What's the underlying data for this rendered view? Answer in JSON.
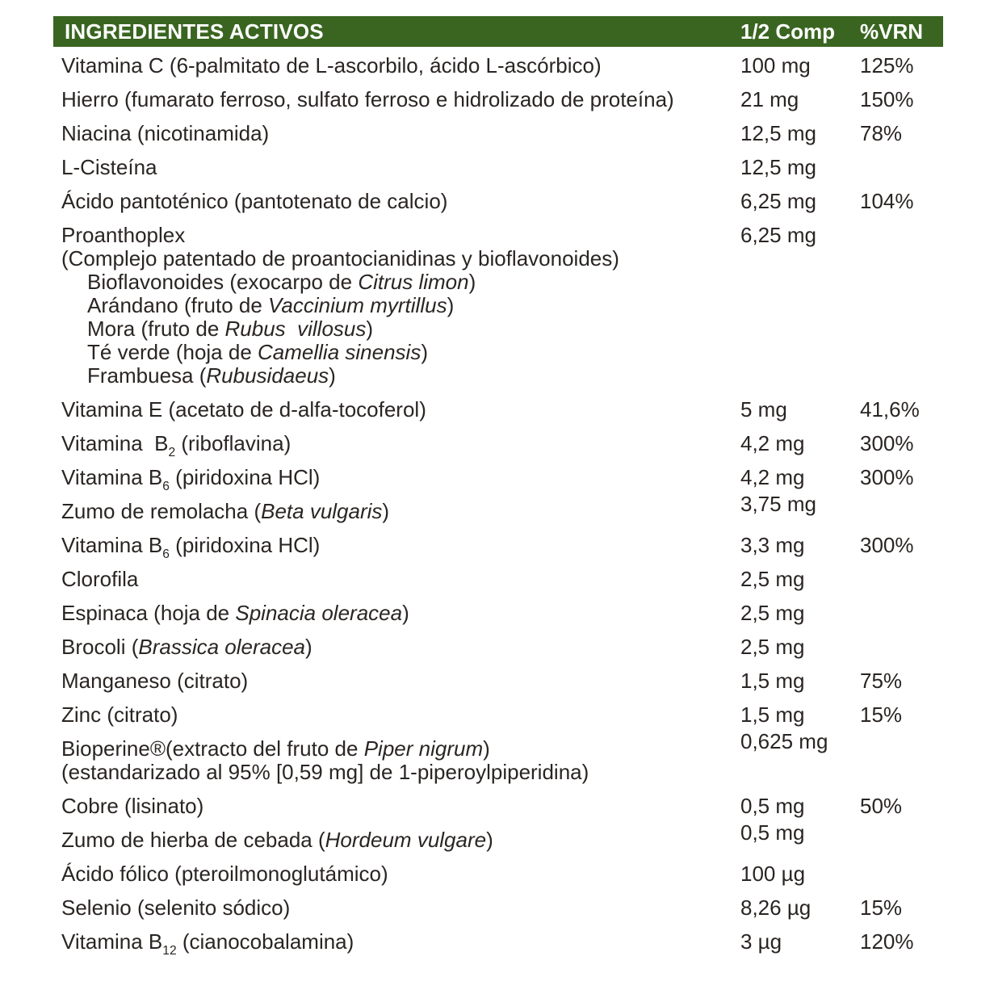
{
  "header": {
    "title": "INGREDIENTES ACTIVOS",
    "col_amount": "1/2 Comp",
    "col_vrn": "%VRN"
  },
  "colors": {
    "header_bg": "#3A6521",
    "header_text": "#FFFFFF",
    "body_text": "#2A2523",
    "page_bg": "#FFFFFF"
  },
  "rows": [
    {
      "lines": [
        {
          "indent": false,
          "segs": [
            [
              "n",
              "Vitamina C (6-palmitato de L-ascorbilo, ácido L-ascórbico)"
            ]
          ]
        }
      ],
      "amount": "100 mg",
      "vrn": "125%",
      "raised": false
    },
    {
      "lines": [
        {
          "indent": false,
          "segs": [
            [
              "n",
              "Hierro (fumarato ferroso, sulfato ferroso e hidrolizado de proteína)"
            ]
          ]
        }
      ],
      "amount": "21 mg",
      "vrn": "150%",
      "raised": false
    },
    {
      "lines": [
        {
          "indent": false,
          "segs": [
            [
              "n",
              "Niacina (nicotinamida)"
            ]
          ]
        }
      ],
      "amount": "12,5 mg",
      "vrn": "78%",
      "raised": false
    },
    {
      "lines": [
        {
          "indent": false,
          "segs": [
            [
              "n",
              "L-Cisteína"
            ]
          ]
        }
      ],
      "amount": "12,5 mg",
      "vrn": "",
      "raised": false
    },
    {
      "lines": [
        {
          "indent": false,
          "segs": [
            [
              "n",
              "Ácido pantoténico (pantotenato de calcio)"
            ]
          ]
        }
      ],
      "amount": "6,25 mg",
      "vrn": "104%",
      "raised": false
    },
    {
      "lines": [
        {
          "indent": false,
          "segs": [
            [
              "n",
              "Proanthoplex"
            ]
          ]
        },
        {
          "indent": false,
          "segs": [
            [
              "n",
              "(Complejo patentado de proantocianidinas y bioflavonoides)"
            ]
          ]
        },
        {
          "indent": true,
          "segs": [
            [
              "n",
              "Bioflavonoides (exocarpo de "
            ],
            [
              "i",
              "Citrus limon"
            ],
            [
              "n",
              ")"
            ]
          ]
        },
        {
          "indent": true,
          "segs": [
            [
              "n",
              "Arándano (fruto de "
            ],
            [
              "i",
              "Vaccinium myrtillus"
            ],
            [
              "n",
              ")"
            ]
          ]
        },
        {
          "indent": true,
          "segs": [
            [
              "n",
              "Mora (fruto de "
            ],
            [
              "i",
              "Rubus  villosus"
            ],
            [
              "n",
              ")"
            ]
          ]
        },
        {
          "indent": true,
          "segs": [
            [
              "n",
              "Té verde (hoja de "
            ],
            [
              "i",
              "Camellia sinensis"
            ],
            [
              "n",
              ")"
            ]
          ]
        },
        {
          "indent": true,
          "segs": [
            [
              "n",
              "Frambuesa ("
            ],
            [
              "i",
              "Rubusidaeus"
            ],
            [
              "n",
              ")"
            ]
          ]
        }
      ],
      "amount": "6,25 mg",
      "vrn": "",
      "raised": false
    },
    {
      "lines": [
        {
          "indent": false,
          "segs": [
            [
              "n",
              "Vitamina E (acetato de d-alfa-tocoferol)"
            ]
          ]
        }
      ],
      "amount": "5 mg",
      "vrn": "41,6%",
      "raised": false
    },
    {
      "lines": [
        {
          "indent": false,
          "segs": [
            [
              "n",
              "Vitamina  B"
            ],
            [
              "s",
              "2"
            ],
            [
              "n",
              " (riboflavina)"
            ]
          ]
        }
      ],
      "amount": "4,2 mg",
      "vrn": "300%",
      "raised": false
    },
    {
      "lines": [
        {
          "indent": false,
          "segs": [
            [
              "n",
              "Vitamina B"
            ],
            [
              "s",
              "6"
            ],
            [
              "n",
              " (piridoxina HCl)"
            ]
          ]
        }
      ],
      "amount": "4,2 mg",
      "vrn": "300%",
      "raised": false
    },
    {
      "lines": [
        {
          "indent": false,
          "segs": [
            [
              "n",
              "Zumo de remolacha ("
            ],
            [
              "i",
              "Beta vulgaris"
            ],
            [
              "n",
              ")"
            ]
          ]
        }
      ],
      "amount": "3,75 mg",
      "vrn": "",
      "raised": true
    },
    {
      "lines": [
        {
          "indent": false,
          "segs": [
            [
              "n",
              "Vitamina B"
            ],
            [
              "s",
              "6"
            ],
            [
              "n",
              " (piridoxina HCl)"
            ]
          ]
        }
      ],
      "amount": "3,3 mg",
      "vrn": "300%",
      "raised": false
    },
    {
      "lines": [
        {
          "indent": false,
          "segs": [
            [
              "n",
              "Clorofila"
            ]
          ]
        }
      ],
      "amount": "2,5 mg",
      "vrn": "",
      "raised": false
    },
    {
      "lines": [
        {
          "indent": false,
          "segs": [
            [
              "n",
              "Espinaca (hoja de "
            ],
            [
              "i",
              "Spinacia oleracea"
            ],
            [
              "n",
              ")"
            ]
          ]
        }
      ],
      "amount": "2,5 mg",
      "vrn": "",
      "raised": false
    },
    {
      "lines": [
        {
          "indent": false,
          "segs": [
            [
              "n",
              "Brocoli ("
            ],
            [
              "i",
              "Brassica oleracea"
            ],
            [
              "n",
              ")"
            ]
          ]
        }
      ],
      "amount": "2,5 mg",
      "vrn": "",
      "raised": false
    },
    {
      "lines": [
        {
          "indent": false,
          "segs": [
            [
              "n",
              "Manganeso (citrato)"
            ]
          ]
        }
      ],
      "amount": "1,5 mg",
      "vrn": "75%",
      "raised": false
    },
    {
      "lines": [
        {
          "indent": false,
          "segs": [
            [
              "n",
              "Zinc (citrato)"
            ]
          ]
        }
      ],
      "amount": "1,5 mg",
      "vrn": "15%",
      "raised": false
    },
    {
      "lines": [
        {
          "indent": false,
          "segs": [
            [
              "n",
              "Bioperine®(extracto del fruto de "
            ],
            [
              "i",
              "Piper nigrum"
            ],
            [
              "n",
              ")"
            ]
          ]
        },
        {
          "indent": false,
          "segs": [
            [
              "n",
              "(estandarizado al 95% [0,59 mg] de 1-piperoylpiperidina)"
            ]
          ]
        }
      ],
      "amount": "0,625 mg",
      "vrn": "",
      "raised": true
    },
    {
      "lines": [
        {
          "indent": false,
          "segs": [
            [
              "n",
              "Cobre (lisinato)"
            ]
          ]
        }
      ],
      "amount": "0,5 mg",
      "vrn": "50%",
      "raised": false
    },
    {
      "lines": [
        {
          "indent": false,
          "segs": [
            [
              "n",
              "Zumo de hierba de cebada ("
            ],
            [
              "i",
              "Hordeum vulgare"
            ],
            [
              "n",
              ")"
            ]
          ]
        }
      ],
      "amount": "0,5 mg",
      "vrn": "",
      "raised": true
    },
    {
      "lines": [
        {
          "indent": false,
          "segs": [
            [
              "n",
              "Ácido fólico (pteroilmonoglutámico)"
            ]
          ]
        }
      ],
      "amount": "100 µg",
      "vrn": "",
      "raised": false
    },
    {
      "lines": [
        {
          "indent": false,
          "segs": [
            [
              "n",
              "Selenio (selenito sódico)"
            ]
          ]
        }
      ],
      "amount": "8,26 µg",
      "vrn": "15%",
      "raised": false
    },
    {
      "lines": [
        {
          "indent": false,
          "segs": [
            [
              "n",
              "Vitamina B"
            ],
            [
              "s",
              "12"
            ],
            [
              "n",
              " (cianocobalamina)"
            ]
          ]
        }
      ],
      "amount": "3 µg",
      "vrn": "120%",
      "raised": false
    }
  ]
}
